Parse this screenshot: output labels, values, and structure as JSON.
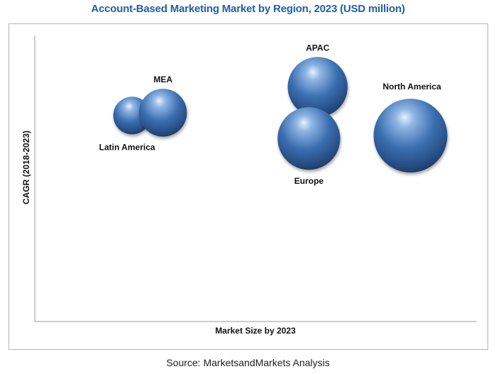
{
  "chart_data": {
    "type": "scatter",
    "title": "Account-Based Marketing Market by Region, 2023 (USD million)",
    "xlabel": "Market Size by 2023",
    "ylabel": "CAGR (2018-2023)",
    "xlim": [
      0,
      100
    ],
    "ylim": [
      0,
      100
    ],
    "grid": false,
    "legend": "none",
    "bubble_color": "#3a6fb0",
    "points": [
      {
        "label": "Latin America",
        "x": 22,
        "y": 72,
        "size": 13,
        "label_pos": "below-left"
      },
      {
        "label": "MEA",
        "x": 29,
        "y": 73,
        "size": 21,
        "label_pos": "above"
      },
      {
        "label": "APAC",
        "x": 64,
        "y": 82,
        "size": 33,
        "label_pos": "above"
      },
      {
        "label": "Europe",
        "x": 62,
        "y": 64,
        "size": 36,
        "label_pos": "below"
      },
      {
        "label": "North America",
        "x": 85,
        "y": 65,
        "size": 50,
        "label_pos": "above-right"
      }
    ]
  },
  "source": "Source: MarketsandMarkets Analysis"
}
